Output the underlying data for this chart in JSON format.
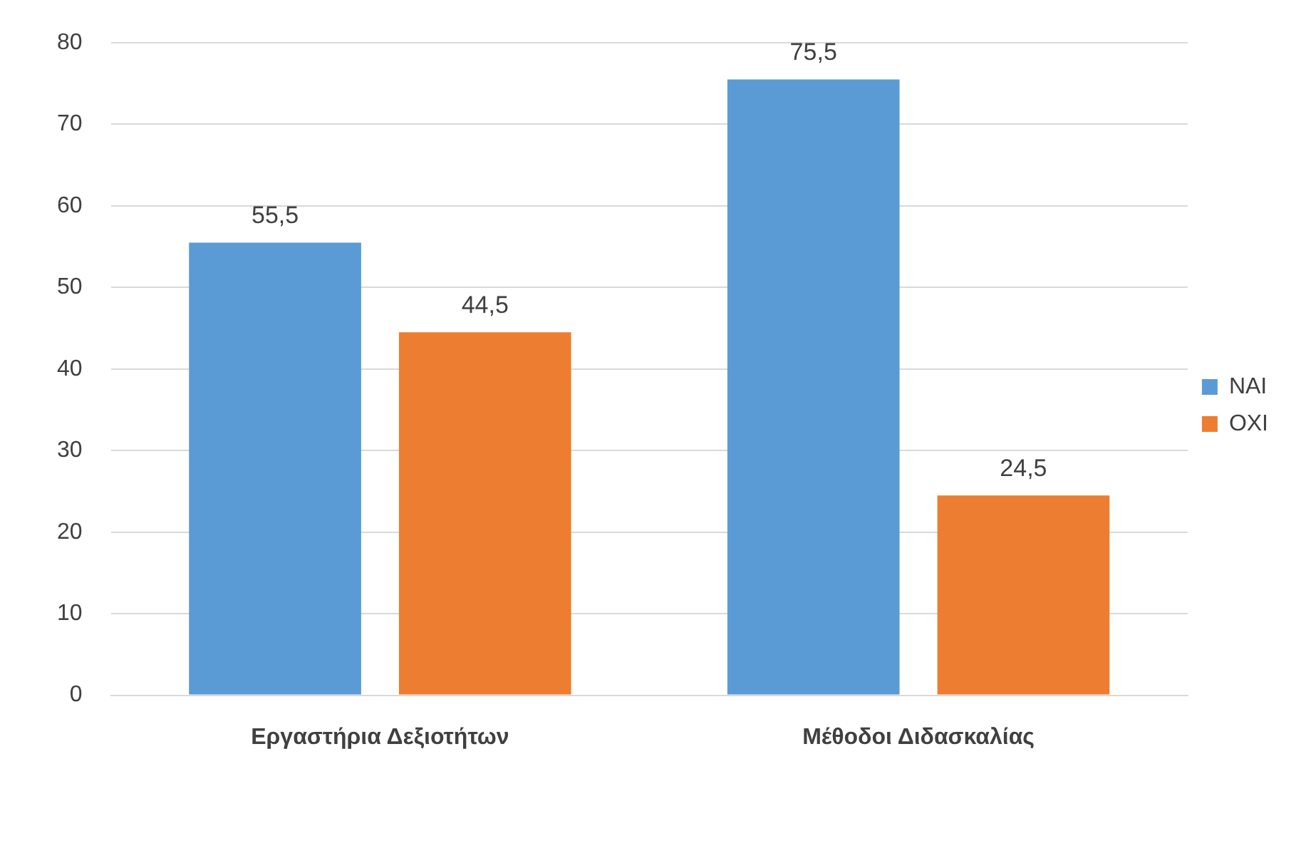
{
  "chart_data": {
    "type": "bar",
    "categories": [
      "Εργαστήρια Δεξιοτήτων",
      "Μέθοδοι Διδασκαλίας"
    ],
    "series": [
      {
        "name": "ΝΑΙ",
        "color": "#5b9bd5",
        "values": [
          55.5,
          75.5
        ],
        "value_labels": [
          "55,5",
          "75,5"
        ]
      },
      {
        "name": "ΟΧΙ",
        "color": "#ed7d31",
        "values": [
          44.5,
          24.5
        ],
        "value_labels": [
          "44,5",
          "24,5"
        ]
      }
    ],
    "ylim": [
      0,
      80
    ],
    "yticks": [
      0,
      10,
      20,
      30,
      40,
      50,
      60,
      70,
      80
    ],
    "grid": "y",
    "legend": "right"
  }
}
